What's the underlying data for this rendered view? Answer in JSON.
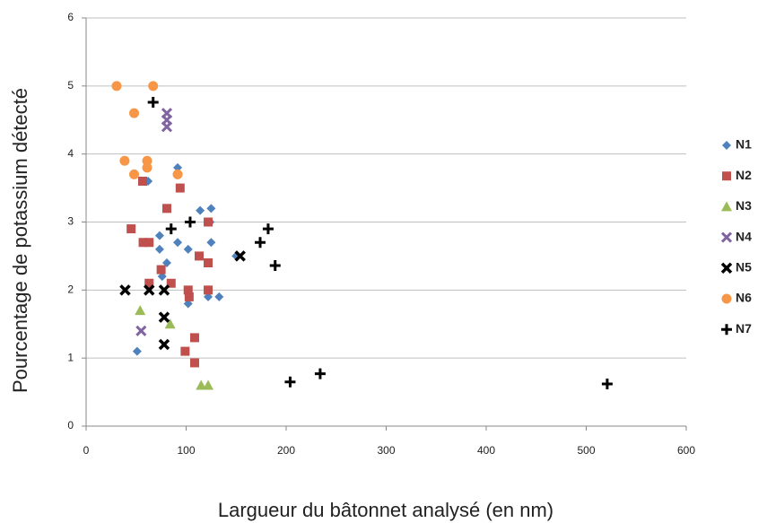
{
  "chart_data": {
    "type": "scatter",
    "xlabel": "Largueur du bâtonnet analysé (en nm)",
    "ylabel": "Pourcentage de potassium détecté",
    "xlim": [
      0,
      600
    ],
    "xticks": [
      0,
      100,
      200,
      300,
      400,
      500,
      600
    ],
    "ylim": [
      0,
      6
    ],
    "yticks": [
      0,
      1,
      2,
      3,
      4,
      5,
      6
    ],
    "grid": true,
    "legend": "right",
    "series": [
      {
        "name": "N1",
        "color": "#4f81bd",
        "marker": "diamond",
        "x": [
          62,
          91.5,
          73.5,
          91.5,
          73.5,
          102,
          80.7,
          114,
          125,
          124,
          125,
          150,
          76,
          102,
          122,
          133,
          51
        ],
        "values": [
          3.6,
          3.8,
          2.8,
          2.7,
          2.6,
          2.6,
          2.4,
          3.17,
          3.2,
          3.0,
          2.7,
          2.5,
          2.2,
          1.8,
          1.9,
          1.9,
          1.1
        ]
      },
      {
        "name": "N2",
        "color": "#c0504d",
        "marker": "square",
        "x": [
          56.5,
          94,
          80.7,
          122,
          45,
          57,
          63,
          113,
          122,
          75,
          63,
          85,
          102,
          103,
          122,
          108.5,
          99,
          108.5
        ],
        "values": [
          3.6,
          3.5,
          3.2,
          3.0,
          2.9,
          2.7,
          2.7,
          2.5,
          2.4,
          2.3,
          2.1,
          2.1,
          2.0,
          1.9,
          2.0,
          1.3,
          1.1,
          0.93
        ]
      },
      {
        "name": "N3",
        "color": "#9bbb59",
        "marker": "triangle",
        "x": [
          54,
          84,
          115,
          122
        ],
        "values": [
          1.7,
          1.5,
          0.6,
          0.6
        ]
      },
      {
        "name": "N4",
        "color": "#8064a2",
        "marker": "x",
        "x": [
          55,
          80.7,
          80.7,
          80.7
        ],
        "values": [
          1.4,
          4.6,
          4.5,
          4.4
        ]
      },
      {
        "name": "N5",
        "color": "#000000",
        "marker": "boldx",
        "x": [
          39,
          63,
          78,
          78,
          78,
          154
        ],
        "values": [
          2.0,
          2.0,
          2.0,
          1.6,
          1.2,
          2.5
        ]
      },
      {
        "name": "N6",
        "color": "#f79646",
        "marker": "circle",
        "x": [
          30.5,
          67,
          48,
          38.5,
          61,
          61,
          48,
          91.5
        ],
        "values": [
          5.0,
          5.0,
          4.6,
          3.9,
          3.9,
          3.8,
          3.7,
          3.7
        ]
      },
      {
        "name": "N7",
        "color": "#000000",
        "marker": "plus",
        "x": [
          67,
          104,
          85,
          182,
          174,
          189,
          204,
          234,
          521
        ],
        "values": [
          4.76,
          3.0,
          2.9,
          2.9,
          2.7,
          2.36,
          0.65,
          0.77,
          0.62
        ]
      }
    ]
  }
}
